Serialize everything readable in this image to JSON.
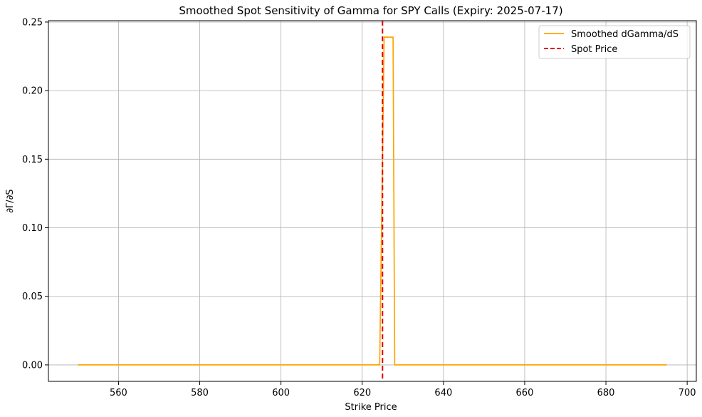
{
  "chart_data": {
    "type": "line",
    "title": "Smoothed Spot Sensitivity of Gamma for SPY Calls (Expiry: 2025-07-17)",
    "xlabel": "Strike Price",
    "ylabel": "∂Γ/∂S",
    "xlim": [
      542.75,
      702.25
    ],
    "ylim": [
      -0.012,
      0.251
    ],
    "xticks": [
      560,
      580,
      600,
      620,
      640,
      660,
      680,
      700
    ],
    "yticks": [
      0.0,
      0.05,
      0.1,
      0.15,
      0.2,
      0.25
    ],
    "ytick_labels": [
      "0.00",
      "0.05",
      "0.10",
      "0.15",
      "0.20",
      "0.25"
    ],
    "grid": true,
    "legend": "top-right",
    "series": [
      {
        "name": "Smoothed dGamma/dS",
        "color": "#FFA500",
        "style": "solid",
        "x": [
          550,
          624.3,
          625.4,
          627.6,
          628.0,
          695
        ],
        "y": [
          0.0,
          0.0,
          0.239,
          0.239,
          0.0,
          0.0
        ]
      }
    ],
    "vlines": [
      {
        "name": "Spot Price",
        "x": 625.0,
        "color": "#E00000",
        "style": "dashed"
      }
    ]
  }
}
